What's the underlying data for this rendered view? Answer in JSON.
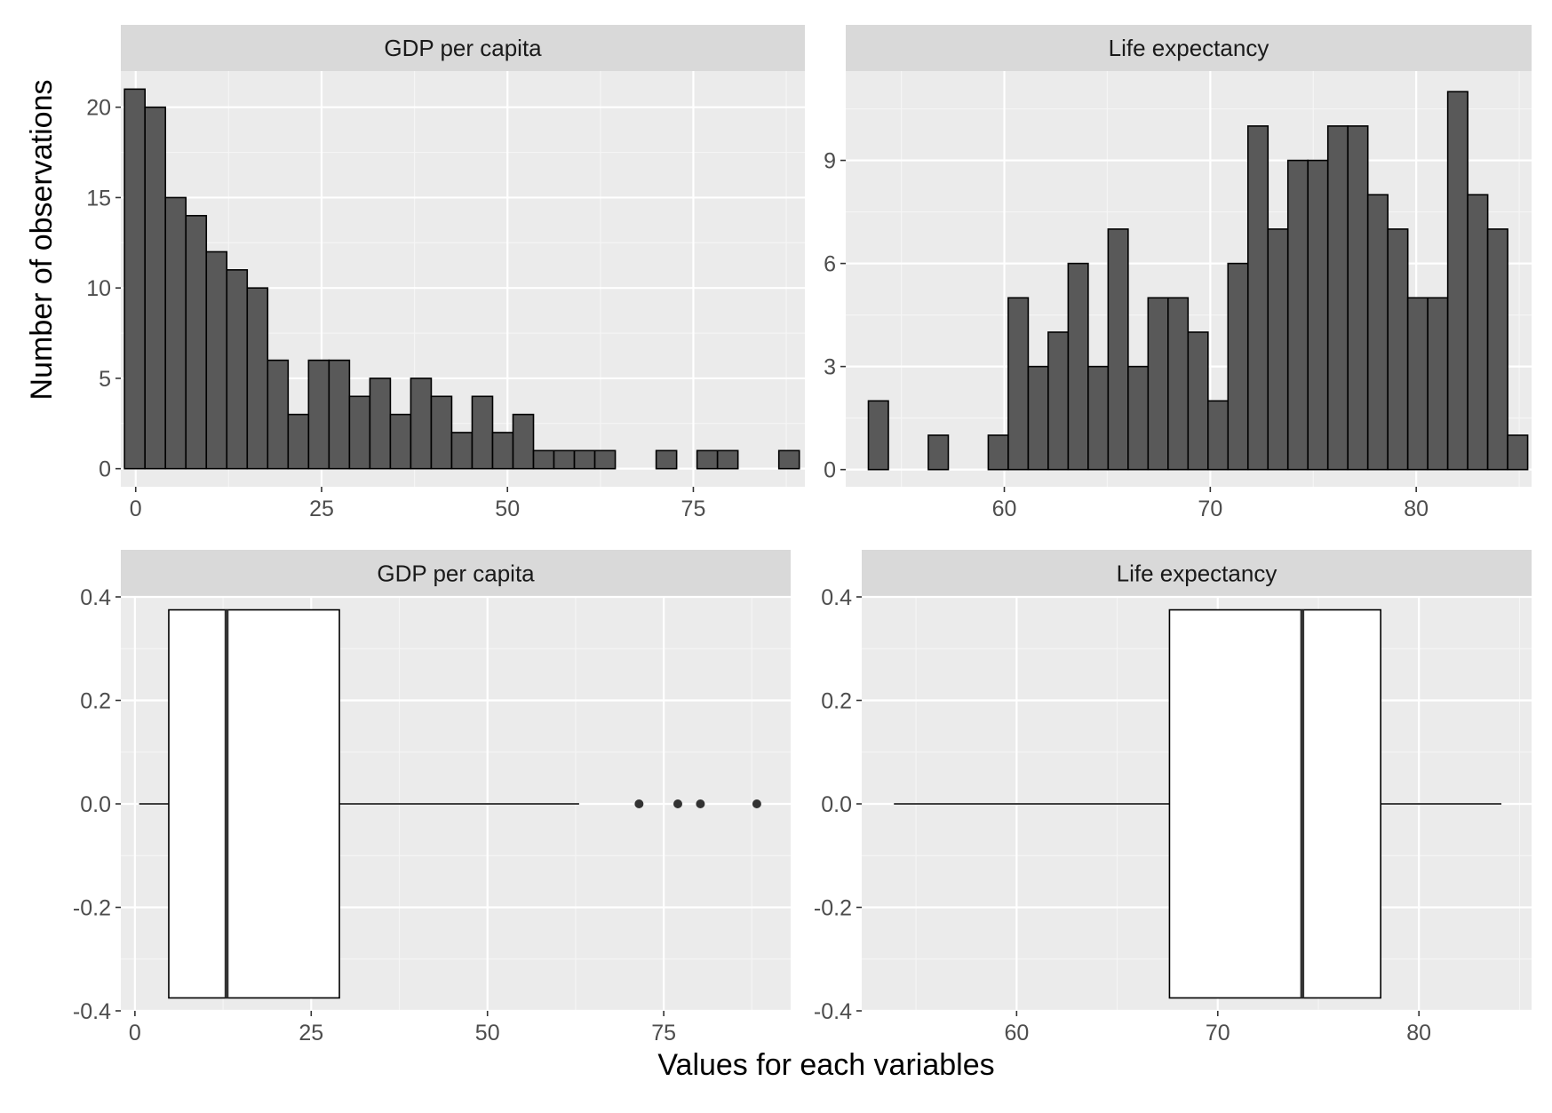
{
  "x_axis_title": "Values for each variables",
  "y_axis_title": "Number of observations",
  "chart_data": [
    {
      "type": "histogram",
      "title": "GDP per capita",
      "xlim": [
        -2,
        90
      ],
      "ylim": [
        -1,
        22
      ],
      "x_ticks": [
        0,
        25,
        50,
        75
      ],
      "y_ticks": [
        0,
        5,
        10,
        15,
        20
      ],
      "bin_start": -1.5,
      "bin_width": 2.75,
      "counts": [
        21,
        20,
        15,
        14,
        12,
        11,
        10,
        6,
        3,
        6,
        6,
        4,
        5,
        3,
        5,
        4,
        2,
        4,
        2,
        3,
        1,
        1,
        1,
        1,
        0,
        0,
        1,
        0,
        1,
        1,
        0,
        0,
        1
      ]
    },
    {
      "type": "histogram",
      "title": "Life expectancy",
      "xlim": [
        52.3,
        85.6
      ],
      "ylim": [
        -0.5,
        11.6
      ],
      "x_ticks": [
        60,
        70,
        80
      ],
      "y_ticks": [
        0,
        3,
        6,
        9
      ],
      "bin_start": 53.4,
      "bin_width": 0.97,
      "counts": [
        2,
        0,
        0,
        1,
        0,
        0,
        1,
        5,
        3,
        4,
        6,
        3,
        7,
        3,
        5,
        5,
        4,
        2,
        6,
        10,
        7,
        9,
        9,
        10,
        10,
        8,
        7,
        5,
        5,
        11,
        8,
        7,
        1
      ]
    },
    {
      "type": "boxplot",
      "title": "GDP per capita",
      "xlim": [
        -2,
        93
      ],
      "ylim": [
        -0.4,
        0.4
      ],
      "x_ticks": [
        0,
        25,
        50,
        75
      ],
      "y_ticks": [
        -0.4,
        -0.2,
        0.0,
        0.2,
        0.4
      ],
      "y_tick_labels": [
        "-0.4",
        "-0.2",
        "0.0",
        "0.2",
        "0.4"
      ],
      "whisker_low": 0.6,
      "q1": 4.8,
      "median": 13,
      "q3": 29,
      "whisker_high": 63,
      "outliers": [
        71.5,
        77,
        80.2,
        88.2
      ],
      "box_ymin": -0.375,
      "box_ymax": 0.375
    },
    {
      "type": "boxplot",
      "title": "Life expectancy",
      "xlim": [
        52.3,
        85.6
      ],
      "ylim": [
        -0.4,
        0.4
      ],
      "x_ticks": [
        60,
        70,
        80
      ],
      "y_ticks": [
        -0.4,
        -0.2,
        0.0,
        0.2,
        0.4
      ],
      "y_tick_labels": [
        "-0.4",
        "-0.2",
        "0.0",
        "0.2",
        "0.4"
      ],
      "whisker_low": 53.9,
      "q1": 67.6,
      "median": 74.2,
      "q3": 78.1,
      "whisker_high": 84.1,
      "outliers": [],
      "box_ymin": -0.375,
      "box_ymax": 0.375
    }
  ]
}
